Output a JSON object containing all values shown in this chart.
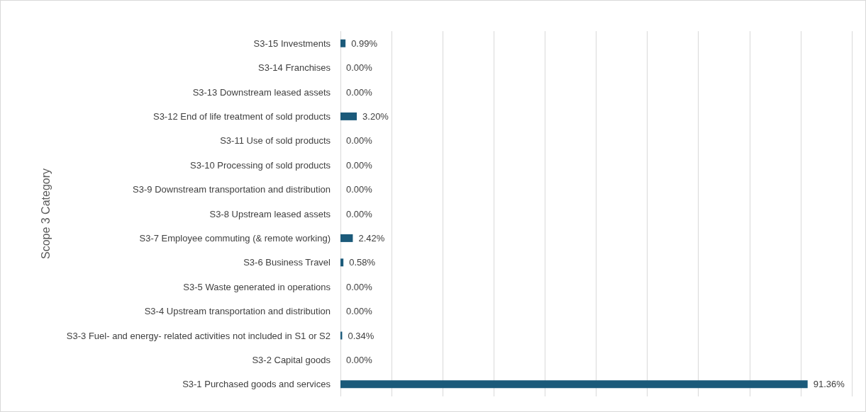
{
  "chart_data": {
    "type": "bar",
    "orientation": "horizontal",
    "ylabel": "Scope 3 Category",
    "categories": [
      "S3-15 Investments",
      "S3-14 Franchises",
      "S3-13 Downstream leased assets",
      "S3-12 End of life treatment of sold products",
      "S3-11 Use of sold products",
      "S3-10 Processing of sold products",
      "S3-9 Downstream transportation and distribution",
      "S3-8 Upstream leased assets",
      "S3-7 Employee commuting (& remote working)",
      "S3-6 Business Travel",
      "S3-5 Waste generated in operations",
      "S3-4 Upstream transportation and distribution",
      "S3-3 Fuel- and energy- related activities not included in S1 or S2",
      "S3-2 Capital goods",
      "S3-1 Purchased goods and services"
    ],
    "values": [
      0.99,
      0,
      0,
      3.2,
      0,
      0,
      0,
      0,
      2.42,
      0.58,
      0,
      0,
      0.34,
      0,
      91.36
    ],
    "value_labels": [
      "0.99%",
      "0.00%",
      "0.00%",
      "3.20%",
      "0.00%",
      "0.00%",
      "0.00%",
      "0.00%",
      "2.42%",
      "0.58%",
      "0.00%",
      "0.00%",
      "0.34%",
      "0.00%",
      "91.36%"
    ],
    "color": "#1b5a7a",
    "xlim": [
      0,
      100
    ],
    "xticks": [
      {
        "value": 0,
        "label": null
      },
      {
        "value": 10,
        "label": null
      },
      {
        "value": 20,
        "label": null
      },
      {
        "value": 30,
        "label": null
      },
      {
        "value": 40,
        "label": null
      },
      {
        "value": 50,
        "label": null
      },
      {
        "value": 60,
        "label": null
      },
      {
        "value": 70,
        "label": null
      },
      {
        "value": 80,
        "label": null
      },
      {
        "value": 90,
        "label": null
      },
      {
        "value": 100,
        "label": null
      }
    ],
    "grid": "x",
    "tick_labels": "y"
  }
}
